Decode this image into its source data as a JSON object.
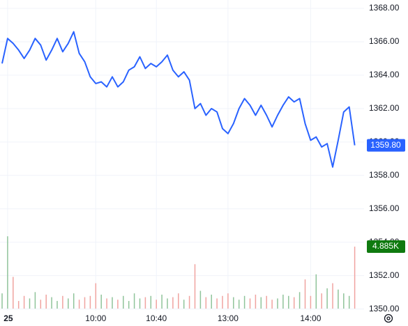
{
  "chart_data": {
    "type": "line",
    "categories": [
      null,
      "25",
      null,
      null,
      null,
      null,
      null,
      null,
      null,
      null,
      null,
      null,
      null,
      null,
      null,
      null,
      null,
      "10:00",
      null,
      null,
      null,
      null,
      null,
      null,
      null,
      null,
      null,
      null,
      "10:40",
      null,
      null,
      null,
      null,
      null,
      null,
      null,
      null,
      null,
      null,
      null,
      null,
      "13:00",
      null,
      null,
      null,
      null,
      null,
      null,
      null,
      null,
      null,
      null,
      null,
      null,
      null,
      null,
      "14:00",
      null,
      null,
      null,
      null,
      null,
      null,
      null,
      null
    ],
    "series": [
      {
        "name": "Price",
        "color": "#2962ff",
        "values": [
          1364.7,
          1366.2,
          1365.9,
          1365.5,
          1365.0,
          1365.5,
          1366.2,
          1365.8,
          1364.9,
          1365.5,
          1366.2,
          1365.4,
          1365.9,
          1366.6,
          1365.3,
          1364.8,
          1363.9,
          1363.5,
          1363.6,
          1363.3,
          1363.9,
          1363.3,
          1363.6,
          1364.3,
          1364.5,
          1365.1,
          1364.4,
          1364.7,
          1364.5,
          1364.8,
          1365.2,
          1364.3,
          1363.9,
          1364.2,
          1363.7,
          1362.0,
          1362.3,
          1361.6,
          1362.0,
          1361.8,
          1360.8,
          1360.5,
          1361.1,
          1362.0,
          1362.6,
          1362.2,
          1361.6,
          1362.2,
          1361.6,
          1360.9,
          1361.6,
          1362.2,
          1362.7,
          1362.4,
          1362.6,
          1361.1,
          1360.1,
          1360.3,
          1359.7,
          1359.9,
          1358.5,
          1360.1,
          1361.8,
          1362.1,
          1359.8
        ]
      },
      {
        "name": "Volume",
        "up_color": "#8fc49a",
        "down_color": "#f0a3a0",
        "values": [
          1.2,
          5.7,
          2.5,
          0.6,
          1.0,
          0.8,
          1.3,
          0.7,
          1.1,
          0.9,
          0.6,
          1.0,
          0.8,
          1.2,
          0.7,
          0.9,
          1.0,
          2.0,
          1.1,
          0.8,
          0.9,
          0.7,
          1.0,
          0.6,
          1.2,
          0.8,
          0.9,
          1.0,
          0.7,
          1.1,
          0.8,
          0.9,
          1.2,
          0.7,
          1.0,
          3.5,
          1.4,
          0.9,
          1.1,
          0.8,
          1.0,
          1.2,
          0.9,
          0.7,
          1.0,
          0.8,
          1.1,
          0.9,
          1.0,
          0.7,
          0.8,
          1.1,
          1.0,
          0.9,
          1.3,
          2.3,
          1.0,
          2.7,
          1.2,
          1.6,
          2.0,
          1.5,
          1.2,
          1.0,
          4.885
        ]
      }
    ],
    "ylim": [
      1349.9,
      1368.5
    ],
    "vlim": [
      0,
      24
    ],
    "yticks": [
      {
        "value": 1368,
        "label": "1368.00"
      },
      {
        "value": 1366,
        "label": "1366.00"
      },
      {
        "value": 1364,
        "label": "1364.00"
      },
      {
        "value": 1362,
        "label": "1362.00"
      },
      {
        "value": 1360,
        "label": "1360.00"
      },
      {
        "value": 1358,
        "label": "1358.00"
      },
      {
        "value": 1356,
        "label": "1356.00"
      },
      {
        "value": 1354,
        "label": "1354.00"
      },
      {
        "value": 1352,
        "label": "1352.00"
      },
      {
        "value": 1350,
        "label": "1350.00"
      }
    ],
    "price_tag": {
      "value": 1359.8,
      "label": "1359.80",
      "color": "#2962ff"
    },
    "volume_tag": {
      "value": 4.885,
      "label": "4.885K",
      "color": "#0f7a0f"
    },
    "grid": true
  }
}
